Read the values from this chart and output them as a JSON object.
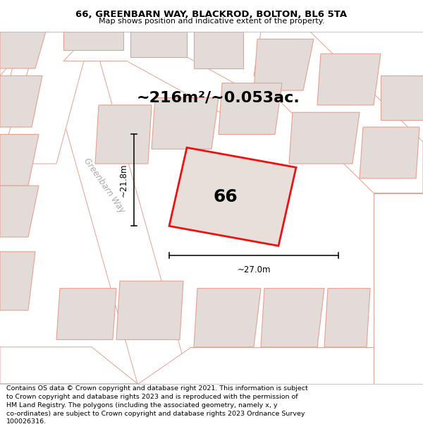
{
  "title": "66, GREENBARN WAY, BLACKROD, BOLTON, BL6 5TA",
  "subtitle": "Map shows position and indicative extent of the property.",
  "footer": "Contains OS data © Crown copyright and database right 2021. This information is subject\nto Crown copyright and database rights 2023 and is reproduced with the permission of\nHM Land Registry. The polygons (including the associated geometry, namely x, y\nco-ordinates) are subject to Crown copyright and database rights 2023 Ordnance Survey\n100026316.",
  "area_label": "~216m²/~0.053ac.",
  "number_label": "66",
  "dim_h": "~21.8m",
  "dim_w": "~27.0m",
  "road_label": "Greenbarn Way",
  "map_bg": "#f2eeec",
  "building_fill": "#e3dbd8",
  "building_edge": "#e8a090",
  "road_fill": "#ffffff",
  "road_edge": "#e8a090",
  "highlight_fill": "#e8deda",
  "highlight_edge": "#ee1111",
  "dim_color": "#111111",
  "title_fontsize": 9.5,
  "subtitle_fontsize": 8,
  "footer_fontsize": 6.8,
  "area_fontsize": 16,
  "number_fontsize": 18,
  "dim_fontsize": 8.5,
  "road_label_fontsize": 8.5
}
